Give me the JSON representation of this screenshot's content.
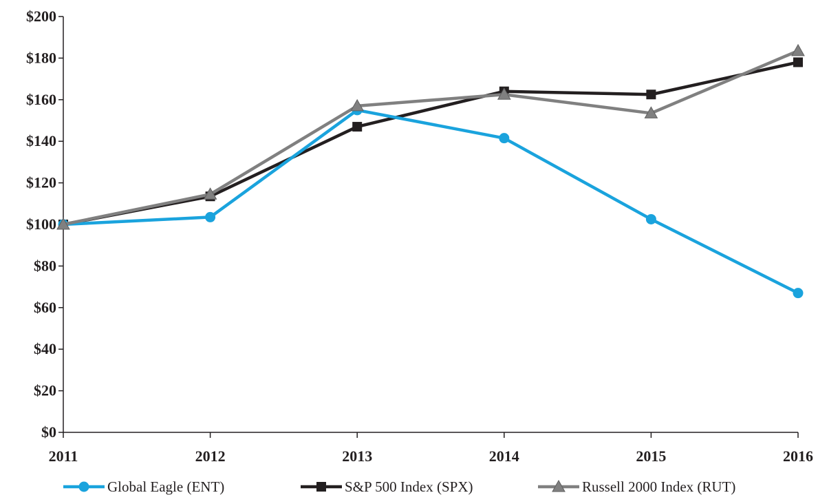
{
  "chart_data": {
    "type": "line",
    "title": "",
    "xlabel": "",
    "ylabel": "",
    "x": [
      "2011",
      "2012",
      "2013",
      "2014",
      "2015",
      "2016"
    ],
    "ylim": [
      0,
      200
    ],
    "yticks": [
      0,
      20,
      40,
      60,
      80,
      100,
      120,
      140,
      160,
      180,
      200
    ],
    "ytick_labels": [
      "$0",
      "$20",
      "$40",
      "$60",
      "$80",
      "$100",
      "$120",
      "$140",
      "$160",
      "$180",
      "$200"
    ],
    "grid": false,
    "legend_position": "bottom",
    "series": [
      {
        "name": "Global Eagle (ENT)",
        "color": "#1aa3dd",
        "marker": "circle",
        "values": [
          100,
          103.5,
          155,
          141.5,
          102.5,
          67
        ]
      },
      {
        "name": "S&P 500 Index (SPX)",
        "color": "#231f20",
        "marker": "square",
        "values": [
          100,
          113.5,
          147,
          164,
          162.5,
          178
        ]
      },
      {
        "name": "Russell 2000 Index (RUT)",
        "color": "#808080",
        "marker": "triangle",
        "values": [
          100,
          114.5,
          157,
          162.5,
          153.5,
          183.5
        ]
      }
    ]
  }
}
